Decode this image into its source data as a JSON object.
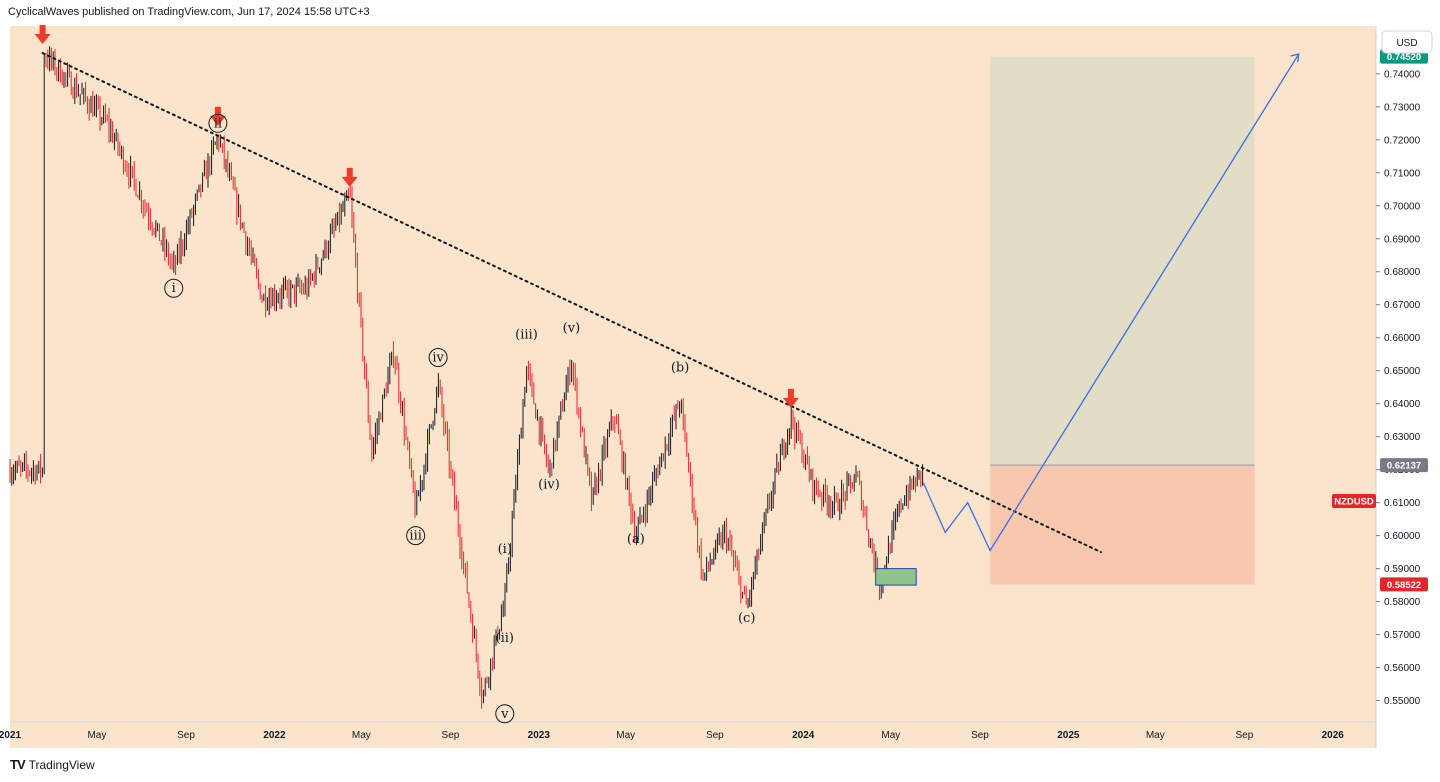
{
  "header": {
    "caption": "CyclicalWaves published on TradingView.com, Jun 17, 2024 15:58 UTC+3"
  },
  "footer": {
    "brand": "TradingView",
    "logo_icon": "tradingview-logo-icon"
  },
  "colors": {
    "background": "#fbe4cc",
    "candle_up": "#131722",
    "candle_down": "#e2262b",
    "target_zone": "#e2ddc6",
    "stop_zone": "#f8c8ae",
    "projection": "#3c6ce8",
    "buy_box": "#8fc48a",
    "buy_box_border": "#2944a6",
    "arrow": "#ef3b2c",
    "label_green": "#089981",
    "label_gray": "#787b86",
    "label_red": "#e2262b"
  },
  "chart_data": {
    "type": "candlestick",
    "symbol": "NZDUSD",
    "currency_label": "USD",
    "ylim": [
      0.5435,
      0.7545
    ],
    "y_ticks": [
      "0.55000",
      "0.56000",
      "0.57000",
      "0.58000",
      "0.59000",
      "0.60000",
      "0.61000",
      "0.62000",
      "0.63000",
      "0.64000",
      "0.65000",
      "0.66000",
      "0.67000",
      "0.68000",
      "0.69000",
      "0.70000",
      "0.71000",
      "0.72000",
      "0.73000",
      "0.74000"
    ],
    "x_ticks": [
      "2021",
      "May",
      "Sep",
      "2022",
      "May",
      "Sep",
      "2023",
      "May",
      "Sep",
      "2024",
      "May",
      "Sep",
      "2025",
      "May",
      "Sep",
      "2026"
    ],
    "x_tick_dates": [
      "2021-01",
      "2021-05",
      "2021-09",
      "2022-01",
      "2022-05",
      "2022-09",
      "2023-01",
      "2023-05",
      "2023-09",
      "2024-01",
      "2024-05",
      "2024-09",
      "2025-01",
      "2025-05",
      "2025-09",
      "2026-01"
    ],
    "price_labels": [
      {
        "text": "0.74520",
        "value": 0.7452,
        "style": "green"
      },
      {
        "text": "0.62137",
        "value": 0.62137,
        "style": "gray"
      },
      {
        "text": "NZDUSD",
        "value": 0.6105,
        "style": "red-symbol"
      },
      {
        "text": "0.58522",
        "value": 0.58522,
        "style": "red"
      }
    ],
    "key_points": [
      {
        "date": "2021-02",
        "value": 0.7463
      },
      {
        "date": "2021-05",
        "value": 0.725
      },
      {
        "date": "2021-08",
        "value": 0.681
      },
      {
        "date": "2021-10",
        "value": 0.721
      },
      {
        "date": "2021-12",
        "value": 0.672
      },
      {
        "date": "2022-02",
        "value": 0.675
      },
      {
        "date": "2022-04",
        "value": 0.703
      },
      {
        "date": "2022-05",
        "value": 0.625
      },
      {
        "date": "2022-06",
        "value": 0.656
      },
      {
        "date": "2022-07",
        "value": 0.607
      },
      {
        "date": "2022-08",
        "value": 0.646
      },
      {
        "date": "2022-10",
        "value": 0.551
      },
      {
        "date": "2022-11",
        "value": 0.58
      },
      {
        "date": "2022-12",
        "value": 0.651
      },
      {
        "date": "2023-01",
        "value": 0.619
      },
      {
        "date": "2023-02",
        "value": 0.653
      },
      {
        "date": "2023-03",
        "value": 0.61
      },
      {
        "date": "2023-04",
        "value": 0.637
      },
      {
        "date": "2023-05",
        "value": 0.6
      },
      {
        "date": "2023-07",
        "value": 0.641
      },
      {
        "date": "2023-08",
        "value": 0.587
      },
      {
        "date": "2023-09",
        "value": 0.601
      },
      {
        "date": "2023-10",
        "value": 0.578
      },
      {
        "date": "2023-11",
        "value": 0.61
      },
      {
        "date": "2023-12",
        "value": 0.636
      },
      {
        "date": "2024-01",
        "value": 0.615
      },
      {
        "date": "2024-02",
        "value": 0.609
      },
      {
        "date": "2024-03",
        "value": 0.618
      },
      {
        "date": "2024-04",
        "value": 0.585
      },
      {
        "date": "2024-05",
        "value": 0.61
      },
      {
        "date": "2024-06",
        "value": 0.62
      }
    ],
    "projection_path": [
      {
        "date": "2024-06",
        "value": 0.616
      },
      {
        "date": "2024-07",
        "value": 0.601
      },
      {
        "date": "2024-08",
        "value": 0.61
      },
      {
        "date": "2024-09",
        "value": 0.5955
      },
      {
        "date": "2025-11",
        "value": 0.746
      }
    ],
    "trendline": [
      {
        "date": "2021-02",
        "value": 0.7463
      },
      {
        "date": "2025-02",
        "value": 0.595
      }
    ],
    "target_zone": {
      "from": "2024-09",
      "to": "2025-09",
      "low": 0.62137,
      "high": 0.7452
    },
    "stop_zone": {
      "from": "2024-09",
      "to": "2025-09",
      "low": 0.58522,
      "high": 0.62137
    },
    "buy_box": {
      "from": "2024-04",
      "to": "2024-06",
      "low": 0.585,
      "high": 0.59
    },
    "sell_arrows": [
      {
        "date": "2021-02",
        "value": 0.7463
      },
      {
        "date": "2021-10",
        "value": 0.7215
      },
      {
        "date": "2022-04",
        "value": 0.703
      },
      {
        "date": "2023-12",
        "value": 0.636
      }
    ],
    "wave_labels": [
      {
        "text": "i",
        "date": "2021-08",
        "value": 0.675,
        "circled": true
      },
      {
        "text": "ii",
        "date": "2021-10",
        "value": 0.725,
        "circled": true
      },
      {
        "text": "iii",
        "date": "2022-07",
        "value": 0.6,
        "circled": true
      },
      {
        "text": "iv",
        "date": "2022-08",
        "value": 0.654,
        "circled": true
      },
      {
        "text": "v",
        "date": "2022-11",
        "value": 0.546,
        "circled": true
      },
      {
        "text": "(iii)",
        "date": "2022-12",
        "value": 0.661,
        "circled": false
      },
      {
        "text": "(v)",
        "date": "2023-02",
        "value": 0.663,
        "circled": false
      },
      {
        "text": "(iv)",
        "date": "2023-01",
        "value": 0.6155,
        "circled": false
      },
      {
        "text": "(i)",
        "date": "2022-11",
        "value": 0.596,
        "circled": false
      },
      {
        "text": "(ii)",
        "date": "2022-11",
        "value": 0.569,
        "circled": false
      },
      {
        "text": "(a)",
        "date": "2023-05",
        "value": 0.599,
        "circled": false
      },
      {
        "text": "(b)",
        "date": "2023-07",
        "value": 0.651,
        "circled": false
      },
      {
        "text": "(c)",
        "date": "2023-10",
        "value": 0.575,
        "circled": false
      }
    ]
  }
}
